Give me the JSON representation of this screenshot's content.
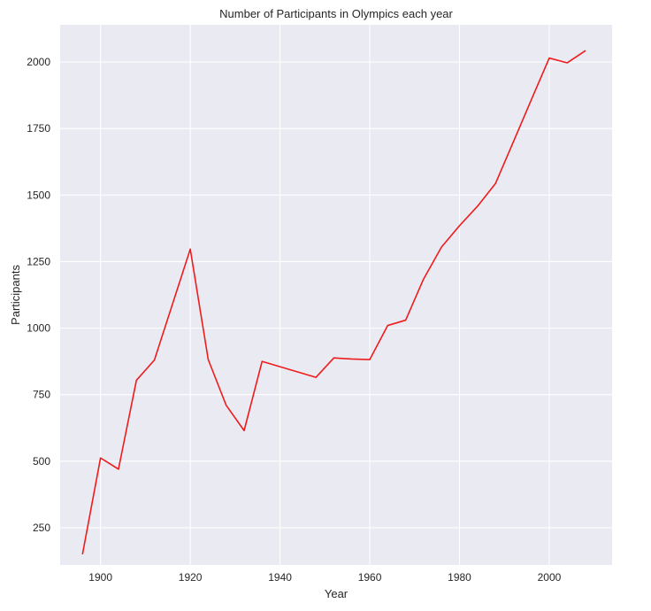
{
  "chart_data": {
    "type": "line",
    "title": "Number of Participants in Olympics each year",
    "xlabel": "Year",
    "ylabel": "Participants",
    "xlim": [
      1891,
      2014
    ],
    "ylim": [
      110,
      2140
    ],
    "xticks": [
      1900,
      1920,
      1940,
      1960,
      1980,
      2000
    ],
    "yticks": [
      250,
      500,
      750,
      1000,
      1250,
      1500,
      1750,
      2000
    ],
    "grid": true,
    "colors": {
      "line": "#ee1c1c",
      "plot_bg": "#eaeaf2",
      "grid": "#ffffff"
    },
    "series": [
      {
        "x": [
          1896,
          1900,
          1904,
          1908,
          1912,
          1920,
          1924,
          1928,
          1932,
          1936,
          1948,
          1952,
          1956,
          1960,
          1964,
          1968,
          1972,
          1976,
          1980,
          1984,
          1988,
          1992,
          1996,
          2000,
          2004,
          2008
        ],
        "values": [
          152,
          512,
          470,
          804,
          880,
          1297,
          882,
          710,
          615,
          875,
          815,
          888,
          884,
          882,
          1010,
          1030,
          1185,
          1305,
          1385,
          1458,
          1543,
          1700,
          1858,
          2015,
          1997,
          2042
        ]
      }
    ]
  }
}
